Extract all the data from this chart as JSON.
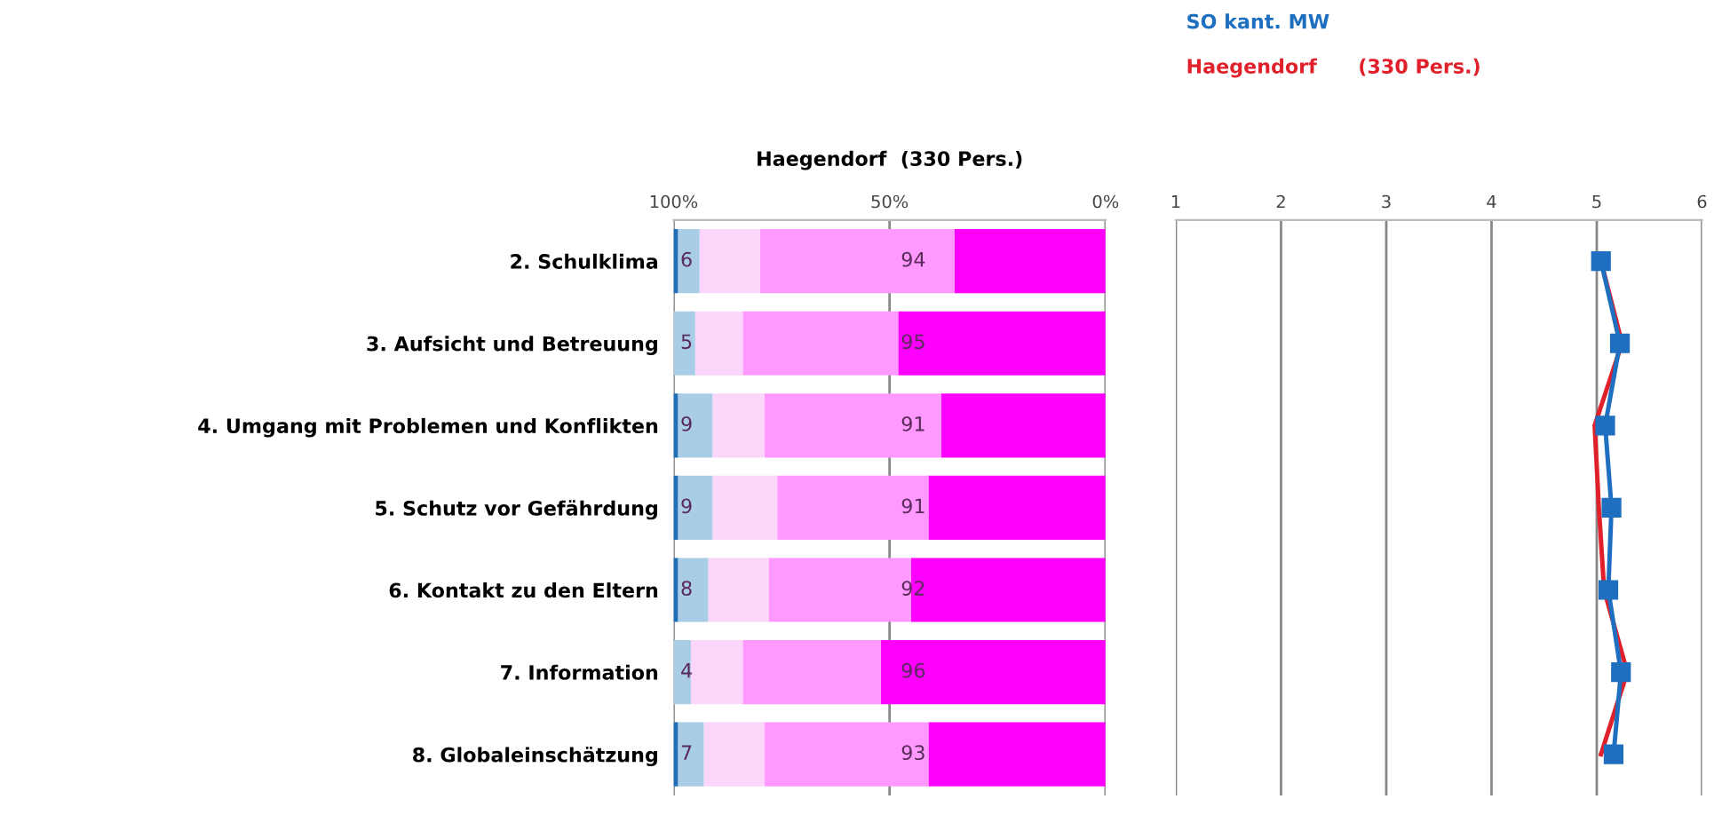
{
  "chart_data": [
    {
      "type": "bar",
      "orientation": "horizontal",
      "stacked": true,
      "title": "Haegendorf  (330 Pers.)",
      "categories": [
        "2. Schulklima",
        "3. Aufsicht und Betreuung",
        "4. Umgang mit Problemen und Konflikten",
        "5. Schutz vor Gefährdung",
        "6. Kontakt zu den Eltern",
        "7. Information",
        "8. Globaleinschätzung"
      ],
      "series": [
        {
          "color": "#ff00ff",
          "values": [
            35,
            48,
            38,
            41,
            45,
            52,
            41
          ]
        },
        {
          "color": "#ff99ff",
          "values": [
            45,
            36,
            41,
            35,
            33,
            32,
            38
          ]
        },
        {
          "color": "#fcd5fb",
          "values": [
            14,
            11,
            12,
            15,
            14,
            12,
            14
          ]
        },
        {
          "color": "#a9cde6",
          "values": [
            5,
            5,
            8,
            8,
            7,
            4,
            6
          ]
        },
        {
          "color": "#1f6fb8",
          "values": [
            1,
            0,
            1,
            1,
            1,
            0,
            1
          ]
        }
      ],
      "xlim": [
        100,
        0
      ],
      "xticks": [
        {
          "value": 100,
          "label": "100%"
        },
        {
          "value": 50,
          "label": "50%"
        },
        {
          "value": 0,
          "label": "0%"
        }
      ],
      "grid": "x",
      "annotations": [
        "6",
        "94",
        "5",
        "95",
        "9",
        "91",
        "9",
        "91",
        "8",
        "92",
        "4",
        "96",
        "7",
        "93"
      ]
    },
    {
      "type": "line",
      "orientation": "horizontal",
      "categories": [
        null,
        null,
        null,
        null,
        null,
        null,
        null
      ],
      "series": [
        {
          "name": "Haegendorf      (330 Pers.)",
          "color": "#e0202a",
          "marker": "none",
          "values": [
            5.04,
            5.24,
            4.98,
            5.02,
            5.07,
            5.29,
            5.04
          ]
        },
        {
          "name": "SO kant. MW",
          "color": "#1f6fc0",
          "marker": "square",
          "values": [
            5.04,
            5.22,
            5.08,
            5.14,
            5.11,
            5.23,
            5.16
          ]
        }
      ],
      "xlim": [
        1,
        6
      ],
      "xticks": [
        1,
        2,
        3,
        4,
        5,
        6
      ],
      "grid": "x",
      "tick_labels": "x",
      "legend": "top"
    }
  ]
}
